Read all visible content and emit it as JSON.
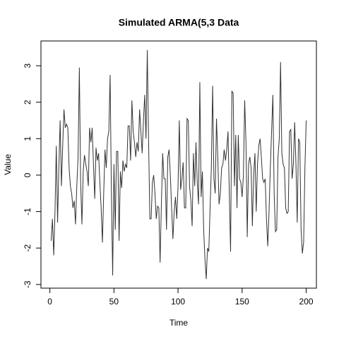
{
  "chart_data": {
    "type": "line",
    "title": "Simulated ARMA(5,3 Data",
    "xlabel": "Time",
    "ylabel": "Value",
    "x": [
      1,
      2,
      3,
      4,
      5,
      6,
      7,
      8,
      9,
      10,
      11,
      12,
      13,
      14,
      15,
      16,
      17,
      18,
      19,
      20,
      21,
      22,
      23,
      24,
      25,
      26,
      27,
      28,
      29,
      30,
      31,
      32,
      33,
      34,
      35,
      36,
      37,
      38,
      39,
      40,
      41,
      42,
      43,
      44,
      45,
      46,
      47,
      48,
      49,
      50,
      51,
      52,
      53,
      54,
      55,
      56,
      57,
      58,
      59,
      60,
      61,
      62,
      63,
      64,
      65,
      66,
      67,
      68,
      69,
      70,
      71,
      72,
      73,
      74,
      75,
      76,
      77,
      78,
      79,
      80,
      81,
      82,
      83,
      84,
      85,
      86,
      87,
      88,
      89,
      90,
      91,
      92,
      93,
      94,
      95,
      96,
      97,
      98,
      99,
      100,
      101,
      102,
      103,
      104,
      105,
      106,
      107,
      108,
      109,
      110,
      111,
      112,
      113,
      114,
      115,
      116,
      117,
      118,
      119,
      120,
      121,
      122,
      123,
      124,
      125,
      126,
      127,
      128,
      129,
      130,
      131,
      132,
      133,
      134,
      135,
      136,
      137,
      138,
      139,
      140,
      141,
      142,
      143,
      144,
      145,
      146,
      147,
      148,
      149,
      150,
      151,
      152,
      153,
      154,
      155,
      156,
      157,
      158,
      159,
      160,
      161,
      162,
      163,
      164,
      165,
      166,
      167,
      168,
      169,
      170,
      171,
      172,
      173,
      174,
      175,
      176,
      177,
      178,
      179,
      180,
      181,
      182,
      183,
      184,
      185,
      186,
      187,
      188,
      189,
      190,
      191,
      192,
      193,
      194,
      195,
      196,
      197,
      198,
      199,
      200
    ],
    "series": [
      {
        "name": "Value",
        "color": "#333333",
        "values": [
          -1.8,
          -1.2,
          -2.2,
          -1.0,
          0.8,
          -1.3,
          0.2,
          1.5,
          -0.3,
          0.8,
          1.8,
          1.3,
          1.4,
          1.3,
          0.2,
          -0.3,
          -0.5,
          -0.9,
          -0.7,
          -1.35,
          -0.3,
          0.5,
          2.95,
          -0.2,
          -1.35,
          0.1,
          0.55,
          0.3,
          0.1,
          -0.3,
          1.3,
          0.9,
          1.3,
          0.3,
          -0.65,
          0.75,
          0.4,
          0.6,
          -0.2,
          -0.9,
          -1.85,
          -0.5,
          0.7,
          0.2,
          1.0,
          1.2,
          2.75,
          -0.5,
          -2.75,
          0.3,
          -1.5,
          0.65,
          0.65,
          -1.8,
          0.1,
          -0.35,
          0.4,
          0.1,
          0.3,
          0.2,
          1.35,
          1.35,
          0.4,
          2.05,
          1.2,
          0.9,
          0.5,
          0.9,
          0.65,
          1.8,
          1.2,
          0.6,
          1.5,
          2.2,
          1.0,
          3.43,
          1.0,
          -1.2,
          -1.2,
          -0.2,
          0.0,
          -0.5,
          -1.2,
          -0.85,
          -0.9,
          -2.4,
          -0.8,
          0.6,
          -0.1,
          -0.1,
          -1.5,
          0.5,
          0.7,
          0.0,
          -0.9,
          -1.75,
          -1.0,
          -0.6,
          -1.2,
          -0.3,
          1.5,
          -0.4,
          -0.1,
          0.35,
          -0.9,
          -0.9,
          1.55,
          1.5,
          -0.3,
          -0.7,
          -1.4,
          0.6,
          -0.3,
          0.9,
          -0.2,
          -0.8,
          2.55,
          -0.6,
          0.1,
          -1.5,
          -2.3,
          -2.85,
          -2.0,
          -2.1,
          -0.9,
          0.2,
          2.45,
          -0.1,
          -0.5,
          1.55,
          0.5,
          -0.8,
          -0.5,
          0.2,
          0.3,
          0.7,
          0.4,
          0.7,
          1.2,
          -0.5,
          -2.1,
          2.3,
          2.25,
          -0.3,
          1.1,
          -0.9,
          1.1,
          -0.1,
          -0.2,
          -0.6,
          0.0,
          2.05,
          0.9,
          -1.7,
          0.3,
          0.5,
          0.2,
          -1.4,
          0.0,
          0.6,
          -1.0,
          0.3,
          0.8,
          1.0,
          0.5,
          -0.1,
          -0.2,
          -0.1,
          -1.2,
          -1.95,
          -1.0,
          0.2,
          1.2,
          2.2,
          -0.5,
          -1.55,
          -1.5,
          0.5,
          1.0,
          3.1,
          0.6,
          0.3,
          0.2,
          -0.9,
          -1.05,
          -1.0,
          1.2,
          1.25,
          -0.1,
          0.3,
          1.45,
          0.3,
          -1.3,
          1.0,
          0.9,
          -1.5,
          -2.15,
          -1.85,
          0.2,
          1.5
        ]
      }
    ],
    "xlim": [
      -6.96,
      207.96
    ],
    "xticks": [
      0,
      50,
      100,
      150,
      200
    ],
    "ylim": [
      -3.1,
      3.68
    ],
    "yticks": [
      -3,
      -2,
      -1,
      0,
      1,
      2,
      3
    ]
  }
}
